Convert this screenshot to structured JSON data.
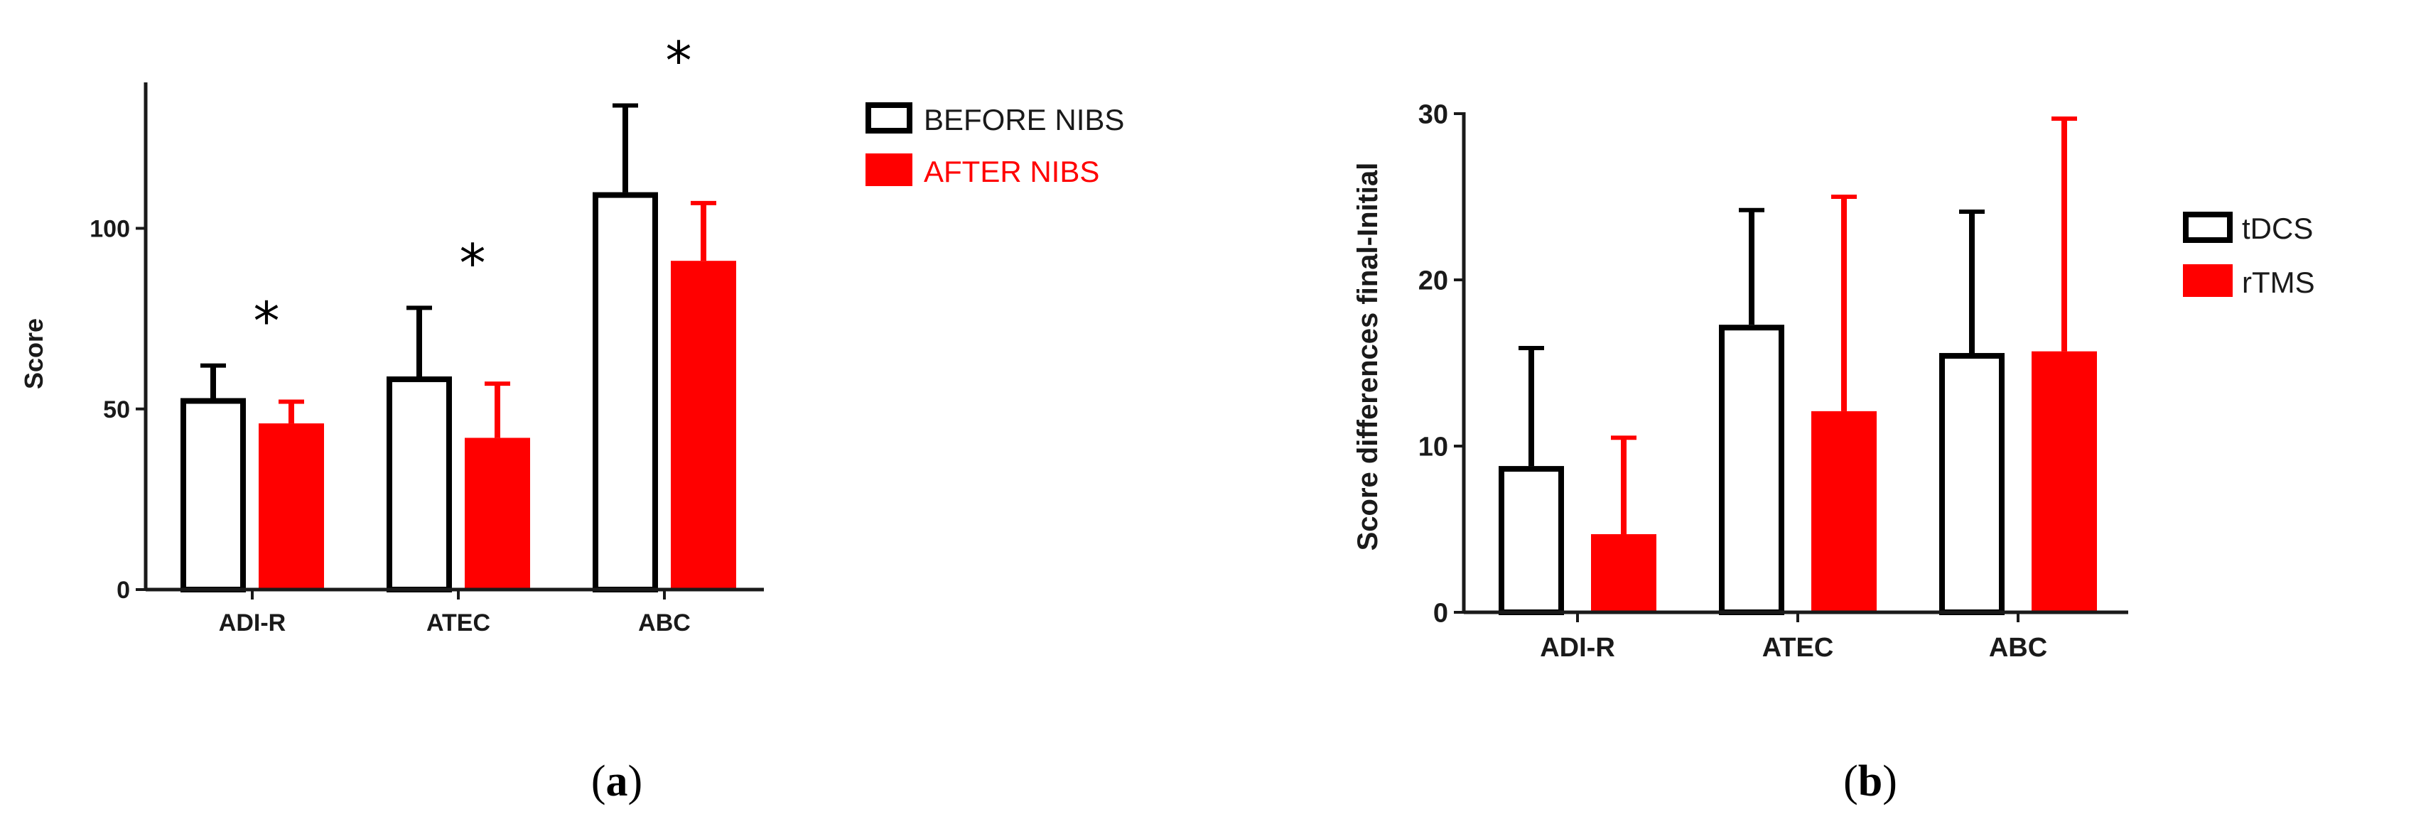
{
  "colors": {
    "outline": "#000000",
    "red": "#ff0000",
    "axis": "#1a1a1a"
  },
  "chart_data": [
    {
      "type": "bar",
      "panel_label": {
        "open": "(",
        "letter": "a",
        "close": ")"
      },
      "title": "",
      "xlabel": "",
      "ylabel": "Score",
      "ylim": [
        0,
        140
      ],
      "yticks": [
        0,
        50,
        100
      ],
      "categories": [
        "ADI-R",
        "ATEC",
        "ABC"
      ],
      "series": [
        {
          "name": "BEFORE NIBS",
          "style": "outline",
          "values": [
            53,
            59,
            110
          ],
          "errors": [
            9,
            19,
            24
          ]
        },
        {
          "name": "AFTER NIBS",
          "style": "filled-red",
          "values": [
            46,
            42,
            91
          ],
          "errors": [
            6,
            15,
            16
          ]
        }
      ],
      "annotations": [
        {
          "category": "ADI-R",
          "text": "*"
        },
        {
          "category": "ATEC",
          "text": "*"
        },
        {
          "category": "ABC",
          "text": "*"
        }
      ],
      "grid": false,
      "legend": "top-right"
    },
    {
      "type": "bar",
      "panel_label": {
        "open": "(",
        "letter": "b",
        "close": ")"
      },
      "title": "",
      "xlabel": "",
      "ylabel": "Score differences final-Initial",
      "ylim": [
        0,
        30
      ],
      "yticks": [
        0,
        10,
        20,
        30
      ],
      "categories": [
        "ADI-R",
        "ATEC",
        "ABC"
      ],
      "series": [
        {
          "name": "tDCS",
          "style": "outline",
          "values": [
            8.8,
            17.3,
            15.6
          ],
          "errors": [
            7.1,
            6.9,
            8.5
          ]
        },
        {
          "name": "rTMS",
          "style": "filled-red",
          "values": [
            4.7,
            12.1,
            15.7
          ],
          "errors": [
            5.8,
            12.9,
            14.0
          ]
        }
      ],
      "annotations": [],
      "grid": false,
      "legend": "top-right"
    }
  ]
}
